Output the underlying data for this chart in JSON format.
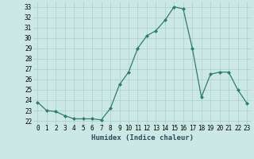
{
  "x": [
    0,
    1,
    2,
    3,
    4,
    5,
    6,
    7,
    8,
    9,
    10,
    11,
    12,
    13,
    14,
    15,
    16,
    17,
    18,
    19,
    20,
    21,
    22,
    23
  ],
  "y": [
    23.8,
    23.0,
    22.9,
    22.5,
    22.2,
    22.2,
    22.2,
    22.1,
    23.2,
    25.5,
    26.7,
    29.0,
    30.2,
    30.7,
    31.7,
    33.0,
    32.8,
    29.0,
    24.3,
    26.5,
    26.7,
    26.7,
    25.0,
    23.7
  ],
  "line_color": "#2e7d6e",
  "marker": "D",
  "marker_size": 2.0,
  "bg_color": "#cce8e4",
  "grid_color": "#aacfcc",
  "xlabel": "Humidex (Indice chaleur)",
  "xlim": [
    -0.5,
    23.5
  ],
  "ylim": [
    21.7,
    33.5
  ],
  "yticks": [
    22,
    23,
    24,
    25,
    26,
    27,
    28,
    29,
    30,
    31,
    32,
    33
  ],
  "xticks": [
    0,
    1,
    2,
    3,
    4,
    5,
    6,
    7,
    8,
    9,
    10,
    11,
    12,
    13,
    14,
    15,
    16,
    17,
    18,
    19,
    20,
    21,
    22,
    23
  ],
  "xtick_labels": [
    "0",
    "1",
    "2",
    "3",
    "4",
    "5",
    "6",
    "7",
    "8",
    "9",
    "10",
    "11",
    "12",
    "13",
    "14",
    "15",
    "16",
    "17",
    "18",
    "19",
    "20",
    "21",
    "22",
    "23"
  ],
  "ytick_labels": [
    "22",
    "23",
    "24",
    "25",
    "26",
    "27",
    "28",
    "29",
    "30",
    "31",
    "32",
    "33"
  ],
  "xlabel_fontsize": 6.5,
  "tick_fontsize": 5.5,
  "line_width": 0.9
}
